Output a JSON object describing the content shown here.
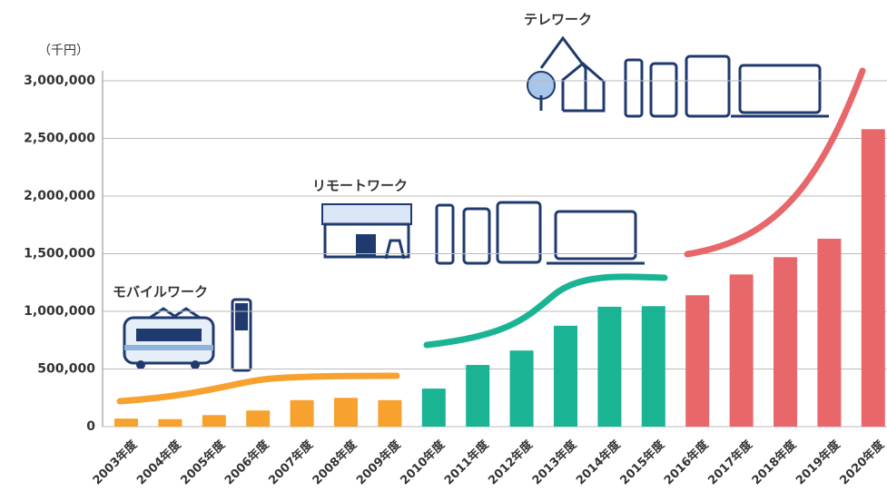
{
  "chart_data": {
    "type": "bar",
    "unit_label": "（千円）",
    "categories": [
      "2003年度",
      "2004年度",
      "2005年度",
      "2006年度",
      "2007年度",
      "2008年度",
      "2009年度",
      "2010年度",
      "2011年度",
      "2012年度",
      "2013年度",
      "2014年度",
      "2015年度",
      "2016年度",
      "2017年度",
      "2018年度",
      "2019年度",
      "2020年度"
    ],
    "values": [
      70000,
      65000,
      100000,
      140000,
      230000,
      250000,
      230000,
      330000,
      535000,
      660000,
      875000,
      1040000,
      1045000,
      1140000,
      1320000,
      1470000,
      1630000,
      2580000
    ],
    "colors": [
      "#f7a12e",
      "#f7a12e",
      "#f7a12e",
      "#f7a12e",
      "#f7a12e",
      "#f7a12e",
      "#f7a12e",
      "#1ab394",
      "#1ab394",
      "#1ab394",
      "#1ab394",
      "#1ab394",
      "#1ab394",
      "#e8676a",
      "#e8676a",
      "#e8676a",
      "#e8676a",
      "#e8676a"
    ],
    "ylim": [
      0,
      3000000
    ],
    "yticks": [
      0,
      {
        "value": 500000,
        "label": "500,000"
      },
      {
        "value": 1000000,
        "label": "1,000,000"
      },
      {
        "value": 1500000,
        "label": "1,500,000"
      },
      {
        "value": 2000000,
        "label": "2,000,000"
      },
      {
        "value": 2500000,
        "label": "2,500,000"
      },
      {
        "value": 3000000,
        "label": "3,000,000"
      }
    ],
    "grid": true,
    "annotations": [
      "モバイルワーク",
      "リモートワーク",
      "テレワーク"
    ]
  }
}
